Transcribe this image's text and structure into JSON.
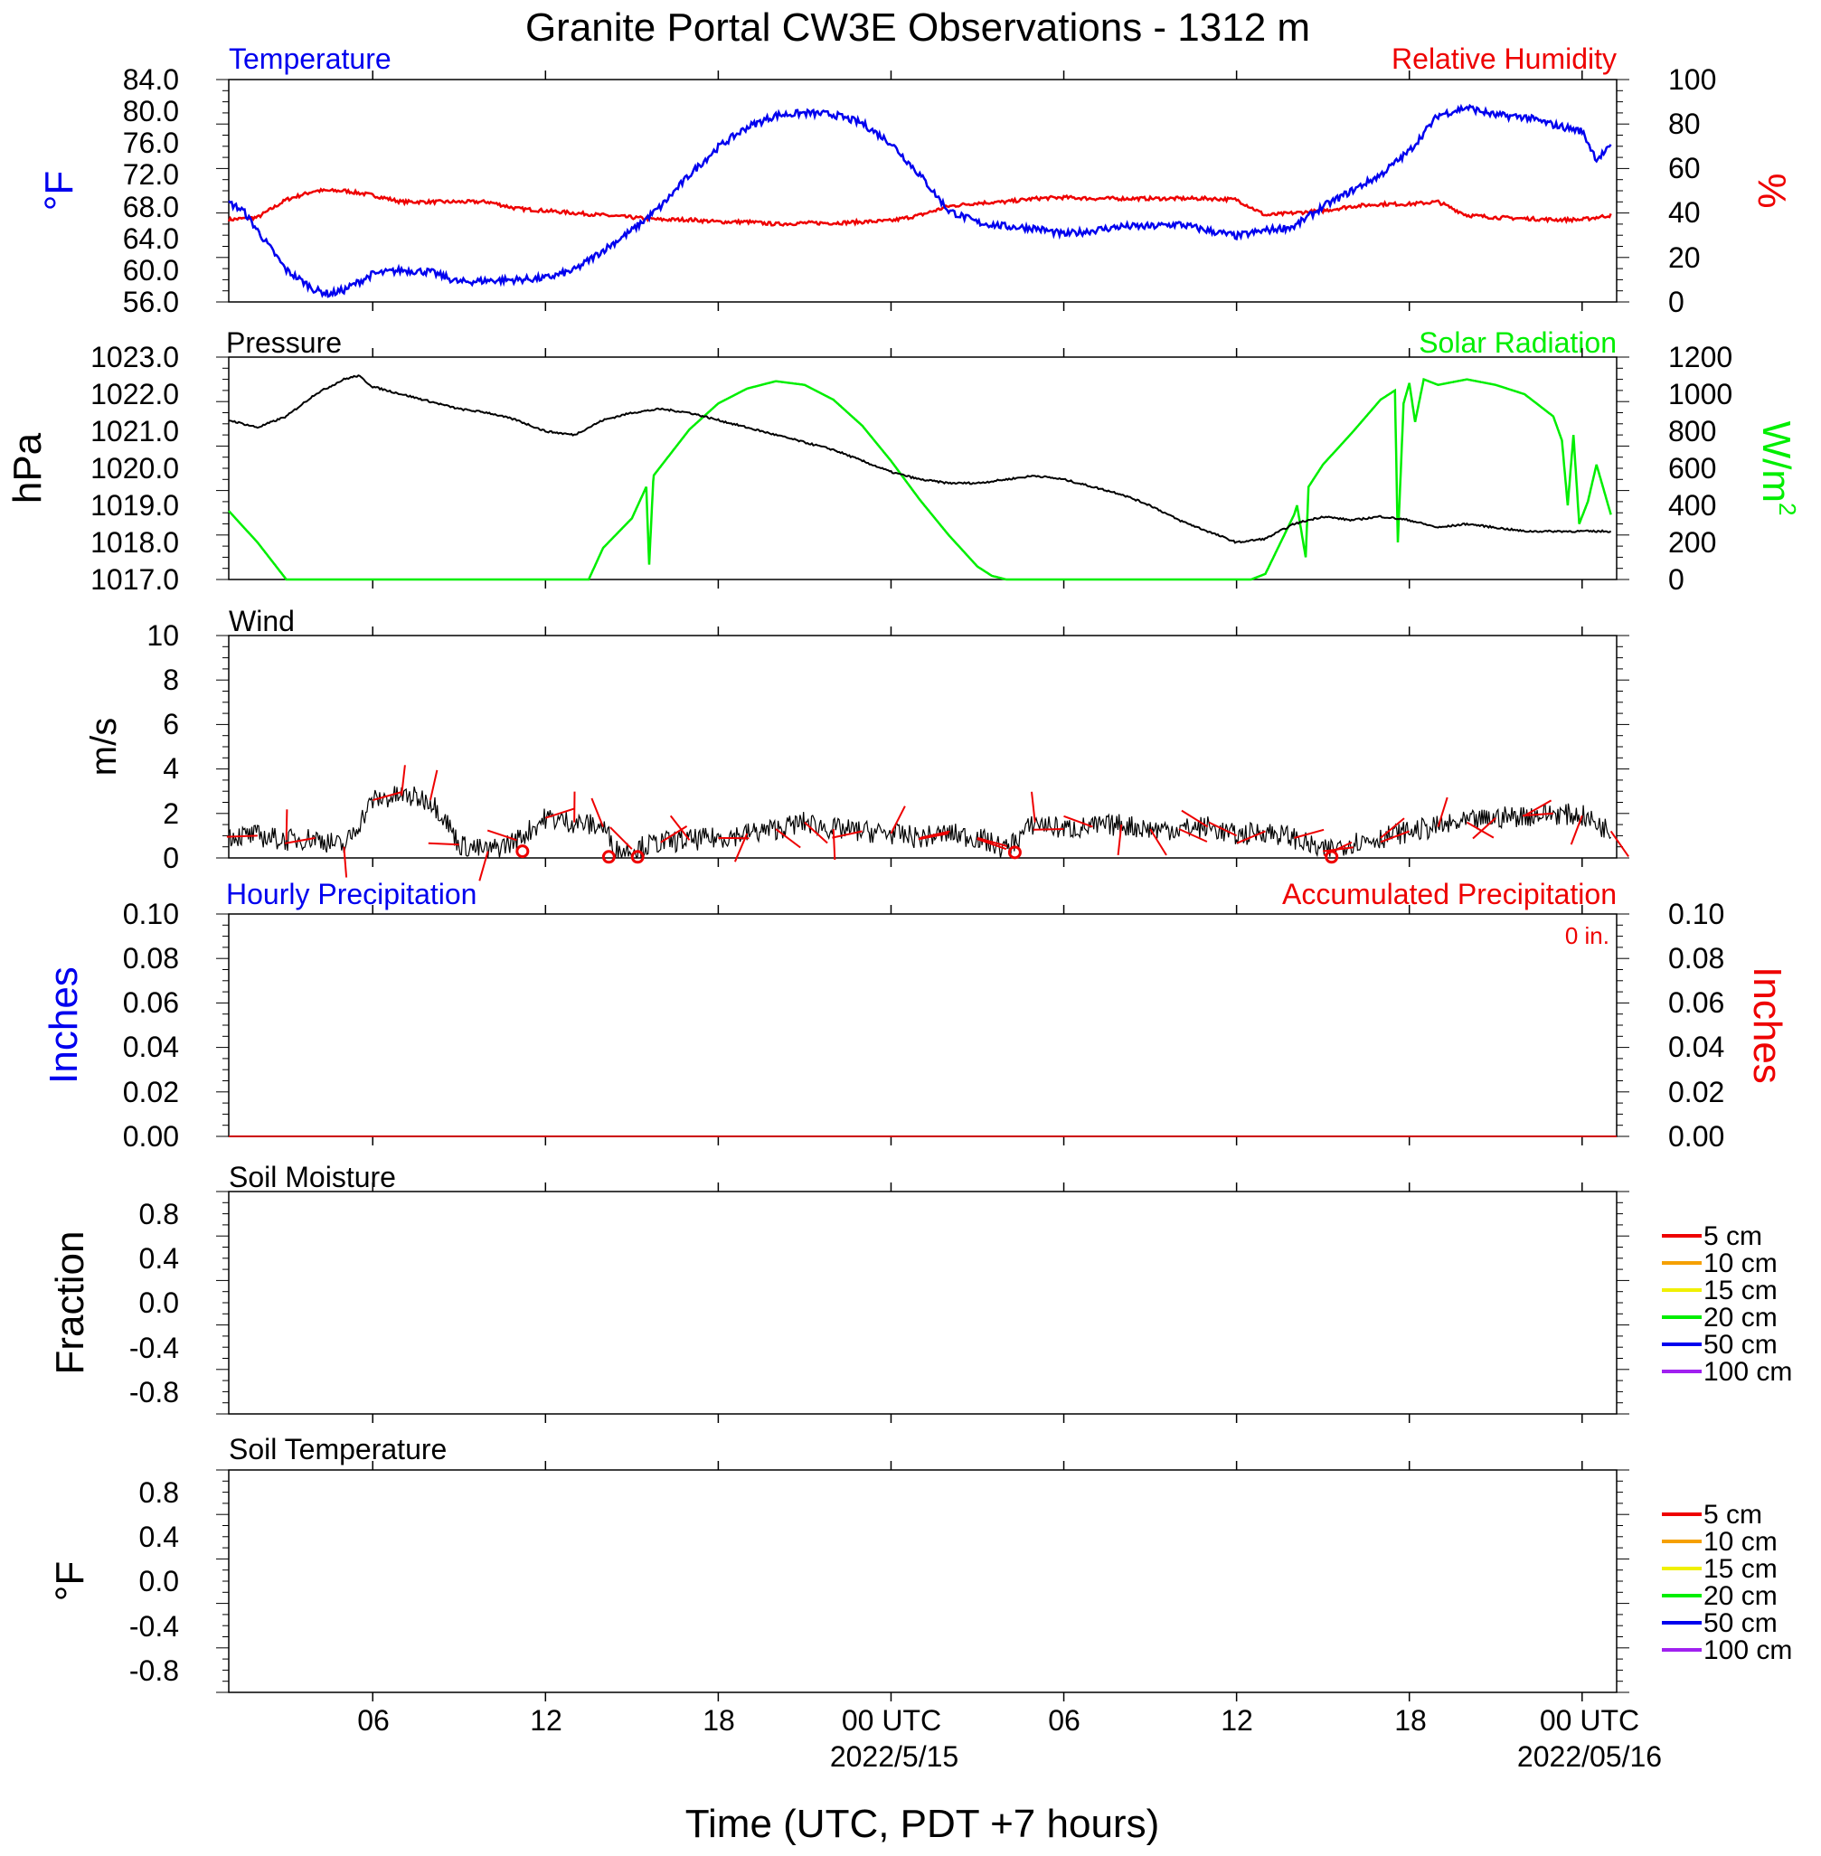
{
  "title": "Granite Portal CW3E Observations - 1312 m",
  "xlabel": "Time (UTC, PDT +7 hours)",
  "colors": {
    "temperature": "#0000ee",
    "humidity": "#ee0000",
    "pressure": "#000000",
    "solar": "#00ee00",
    "wind": "#000000",
    "barb": "#ee0000",
    "hourly_precip": "#0000ee",
    "accum_precip": "#cc0000"
  },
  "x_axis": {
    "tick_hours": [
      6,
      12,
      18,
      24,
      30,
      36,
      42,
      48
    ],
    "tick_labels": [
      "06",
      "12",
      "18",
      "00 UTC",
      "06",
      "12",
      "18",
      "00 UTC"
    ],
    "date_labels": [
      {
        "hour": 24,
        "text": "2022/5/15"
      },
      {
        "hour": 48,
        "text": "2022/05/16"
      }
    ],
    "range_hours": [
      1,
      49.2
    ]
  },
  "panels": [
    {
      "id": "temp_rh",
      "left_title": "Temperature",
      "right_title": "Relative Humidity",
      "left_unit": "°F",
      "right_unit": "%",
      "left_ticks": [
        "84.0",
        "80.0",
        "76.0",
        "72.0",
        "68.0",
        "64.0",
        "60.0",
        "56.0"
      ],
      "right_ticks": [
        "100",
        "80",
        "60",
        "40",
        "20",
        "0"
      ]
    },
    {
      "id": "press_solar",
      "left_title": "Pressure",
      "right_title": "Solar Radiation",
      "left_unit": "hPa",
      "right_unit": "W/m",
      "right_unit_sup": "2",
      "left_ticks": [
        "1023.0",
        "1022.0",
        "1021.0",
        "1020.0",
        "1019.0",
        "1018.0",
        "1017.0"
      ],
      "right_ticks": [
        "1200",
        "1000",
        "800",
        "600",
        "400",
        "200",
        "0"
      ]
    },
    {
      "id": "wind",
      "left_title": "Wind",
      "left_unit": "m/s",
      "left_ticks": [
        "10",
        "8",
        "6",
        "4",
        "2",
        "0"
      ]
    },
    {
      "id": "precip",
      "left_title": "Hourly Precipitation",
      "right_title": "Accumulated Precipitation",
      "total_label": "0 in.",
      "left_unit": "Inches",
      "right_unit": "Inches",
      "left_ticks": [
        "0.10",
        "0.08",
        "0.06",
        "0.04",
        "0.02",
        "0.00"
      ],
      "right_ticks": [
        "0.10",
        "0.08",
        "0.06",
        "0.04",
        "0.02",
        "0.00"
      ]
    },
    {
      "id": "soil_moisture",
      "left_title": "Soil Moisture",
      "left_unit": "Fraction",
      "left_ticks": [
        "0.8",
        "0.4",
        "0.0",
        "-0.4",
        "-0.8"
      ],
      "legend": [
        "5 cm",
        "10 cm",
        "15 cm",
        "20 cm",
        "50 cm",
        "100 cm"
      ]
    },
    {
      "id": "soil_temp",
      "left_title": "Soil Temperature",
      "left_unit": "°F",
      "left_ticks": [
        "0.8",
        "0.4",
        "0.0",
        "-0.4",
        "-0.8"
      ],
      "legend": [
        "5 cm",
        "10 cm",
        "15 cm",
        "20 cm",
        "50 cm",
        "100 cm"
      ]
    }
  ],
  "soil_legend_colors": [
    "#ee0000",
    "#f5a000",
    "#f0f000",
    "#00ee00",
    "#0000ee",
    "#a020f0"
  ],
  "chart_data": [
    {
      "type": "line",
      "x_units": "hours since 2022-05-14 00 UTC",
      "ylim_left": [
        56,
        84
      ],
      "ylim_right": [
        0,
        100
      ],
      "series": [
        {
          "name": "Temperature",
          "axis": "left",
          "x": [
            1,
            1.5,
            2,
            3,
            4,
            4.5,
            5,
            5.5,
            6,
            7,
            8,
            9,
            10,
            11,
            12,
            13,
            14,
            15,
            16,
            17,
            18,
            19,
            20,
            21,
            22,
            23,
            24,
            25,
            26,
            27,
            28,
            29,
            30,
            31,
            32,
            33,
            34,
            35,
            36,
            37,
            38,
            39,
            40,
            41,
            42,
            43,
            44,
            45,
            46,
            47,
            48,
            48.5,
            49
          ],
          "y": [
            68.5,
            67.5,
            65,
            60,
            57.5,
            57,
            57.5,
            58.5,
            59.5,
            60,
            59.8,
            58.5,
            58.7,
            58.8,
            59,
            60,
            62.5,
            65,
            68,
            72,
            75.5,
            78,
            79.5,
            79.8,
            79.6,
            78.5,
            76,
            72,
            67.5,
            66,
            65.5,
            65.3,
            64.5,
            65,
            65.5,
            65.5,
            65.8,
            65,
            64.3,
            65,
            65.5,
            68,
            70,
            72,
            75,
            79.5,
            80.5,
            79.5,
            79.3,
            78.3,
            77.5,
            74,
            75.5
          ]
        },
        {
          "name": "Relative Humidity",
          "axis": "right",
          "x": [
            1,
            2,
            3,
            4,
            5,
            6,
            7,
            8,
            9,
            10,
            11,
            12,
            13,
            14,
            15,
            16,
            17,
            18,
            19,
            20,
            21,
            22,
            23,
            24,
            25,
            26,
            27,
            28,
            29,
            30,
            31,
            32,
            33,
            34,
            35,
            36,
            37,
            38,
            39,
            40,
            41,
            42,
            43,
            44,
            45,
            46,
            47,
            48,
            49
          ],
          "y": [
            37,
            38,
            46,
            50,
            50,
            48,
            45,
            45,
            45,
            45,
            42,
            41,
            40,
            39,
            38,
            37,
            37,
            36,
            36,
            35,
            35.5,
            35.5,
            36,
            36.5,
            39,
            43,
            44.5,
            45,
            46.5,
            47,
            46.5,
            46.5,
            46.5,
            46.5,
            46.5,
            46,
            39,
            40,
            41,
            43,
            44,
            44,
            45,
            39,
            38,
            37.5,
            37,
            37,
            39
          ]
        }
      ]
    },
    {
      "type": "line",
      "x_units": "hours since 2022-05-14 00 UTC",
      "ylim_left": [
        1017,
        1023
      ],
      "ylim_right": [
        0,
        1200
      ],
      "series": [
        {
          "name": "Pressure",
          "axis": "left",
          "x": [
            1,
            2,
            3,
            4,
            5,
            5.5,
            6,
            7,
            8,
            9,
            10,
            11,
            12,
            13,
            14,
            15,
            16,
            17,
            18,
            19,
            20,
            21,
            22,
            23,
            24,
            25,
            26,
            27,
            28,
            29,
            30,
            31,
            32,
            33,
            34,
            35,
            36,
            37,
            38,
            39,
            40,
            41,
            42,
            43,
            44,
            45,
            46,
            47,
            48,
            49
          ],
          "y": [
            1021.3,
            1021.1,
            1021.4,
            1022.0,
            1022.4,
            1022.5,
            1022.2,
            1022.0,
            1021.8,
            1021.6,
            1021.5,
            1021.3,
            1021.0,
            1020.9,
            1021.3,
            1021.5,
            1021.6,
            1021.5,
            1021.3,
            1021.1,
            1020.9,
            1020.7,
            1020.5,
            1020.2,
            1019.9,
            1019.7,
            1019.6,
            1019.6,
            1019.7,
            1019.8,
            1019.7,
            1019.5,
            1019.3,
            1019.0,
            1018.6,
            1018.3,
            1018.0,
            1018.1,
            1018.5,
            1018.7,
            1018.6,
            1018.7,
            1018.6,
            1018.4,
            1018.5,
            1018.4,
            1018.3,
            1018.3,
            1018.3,
            1018.3
          ]
        },
        {
          "name": "Solar Radiation",
          "axis": "right",
          "x": [
            1,
            2,
            3,
            4,
            10,
            13.5,
            14,
            15,
            15.5,
            15.6,
            15.75,
            16,
            17,
            18,
            19,
            20,
            21,
            22,
            23,
            24,
            25,
            26,
            27,
            27.5,
            28,
            36.5,
            37,
            38,
            38.1,
            38.4,
            38.5,
            39,
            40,
            41,
            41.5,
            41.6,
            41.8,
            42,
            42.2,
            42.5,
            43,
            44,
            45,
            46,
            47,
            47.3,
            47.5,
            47.7,
            47.9,
            48.2,
            48.5,
            49
          ],
          "y": [
            370,
            200,
            0,
            0,
            0,
            0,
            170,
            330,
            500,
            80,
            560,
            610,
            810,
            950,
            1030,
            1070,
            1050,
            970,
            830,
            640,
            430,
            240,
            70,
            20,
            0,
            0,
            30,
            350,
            400,
            120,
            500,
            620,
            790,
            970,
            1020,
            200,
            950,
            1060,
            850,
            1080,
            1050,
            1080,
            1050,
            1000,
            880,
            750,
            400,
            780,
            300,
            420,
            620,
            350
          ]
        }
      ]
    },
    {
      "type": "line",
      "x_units": "hours since 2022-05-14 00 UTC",
      "ylim": [
        0,
        10
      ],
      "series": [
        {
          "name": "Wind",
          "x": [
            1,
            2,
            3,
            4,
            5,
            5.5,
            6,
            7,
            8,
            8.5,
            9,
            10,
            11,
            12,
            13,
            14,
            14.5,
            15,
            16,
            17,
            18,
            19,
            20,
            21,
            22,
            23,
            24,
            25,
            26,
            27,
            28,
            29,
            30,
            31,
            32,
            33,
            34,
            35,
            36,
            37,
            38,
            39,
            40,
            41,
            42,
            43,
            44,
            45,
            46,
            47,
            48,
            49
          ],
          "y": [
            1.0,
            1.0,
            0.8,
            0.9,
            0.5,
            1.5,
            2.6,
            2.8,
            2.6,
            1.8,
            0.6,
            0.3,
            0.8,
            1.8,
            1.6,
            1.4,
            0.3,
            0.4,
            0.7,
            0.8,
            0.9,
            1.1,
            1.3,
            1.6,
            1.3,
            1.2,
            1.1,
            0.9,
            1.1,
            0.9,
            0.4,
            1.6,
            1.3,
            1.4,
            1.5,
            1.3,
            1.3,
            1.4,
            1.0,
            1.2,
            0.9,
            0.3,
            0.7,
            0.9,
            1.2,
            1.4,
            1.6,
            1.8,
            1.9,
            2.0,
            1.9,
            1.2
          ]
        },
        {
          "name": "Barb calm points",
          "type": "scatter",
          "x": [
            11.2,
            14.2,
            15.2,
            28.3,
            39.3
          ],
          "y": [
            0.3,
            0.05,
            0.05,
            0.25,
            0.05
          ]
        },
        {
          "name": "Barb",
          "type": "scatter",
          "x": [
            2,
            3,
            4,
            5,
            6,
            7,
            8,
            9,
            10,
            11,
            12,
            13,
            14,
            15,
            16,
            17,
            18,
            19,
            20,
            21,
            22,
            23,
            24,
            25,
            26,
            27,
            28,
            29,
            30,
            31,
            32,
            33,
            34,
            35,
            36,
            37,
            38,
            39,
            40,
            41,
            42,
            43,
            44,
            45,
            46,
            47,
            48,
            49
          ],
          "y": [
            1.0,
            0.8,
            0.9,
            0.5,
            2.6,
            2.8,
            2.6,
            0.6,
            0.3,
            0.8,
            1.8,
            1.6,
            1.4,
            0.4,
            0.7,
            0.8,
            0.9,
            1.1,
            1.3,
            1.6,
            1.3,
            1.2,
            1.1,
            0.9,
            1.1,
            0.9,
            0.4,
            1.6,
            1.3,
            1.4,
            1.5,
            1.3,
            1.3,
            1.4,
            1.0,
            1.2,
            0.9,
            0.3,
            0.7,
            0.9,
            1.2,
            1.4,
            1.6,
            1.8,
            1.9,
            2.0,
            1.9,
            1.2
          ]
        }
      ]
    },
    {
      "type": "line",
      "x_units": "hours since 2022-05-14 00 UTC",
      "ylim": [
        0,
        0.1
      ],
      "series": [
        {
          "name": "Hourly Precipitation",
          "x": [
            1,
            49.2
          ],
          "y": [
            0,
            0
          ]
        },
        {
          "name": "Accumulated Precipitation",
          "x": [
            1,
            49.2
          ],
          "y": [
            0,
            0
          ]
        }
      ]
    },
    {
      "type": "line",
      "ylim": [
        -1,
        1
      ],
      "series": []
    },
    {
      "type": "line",
      "ylim": [
        -1,
        1
      ],
      "series": []
    }
  ]
}
